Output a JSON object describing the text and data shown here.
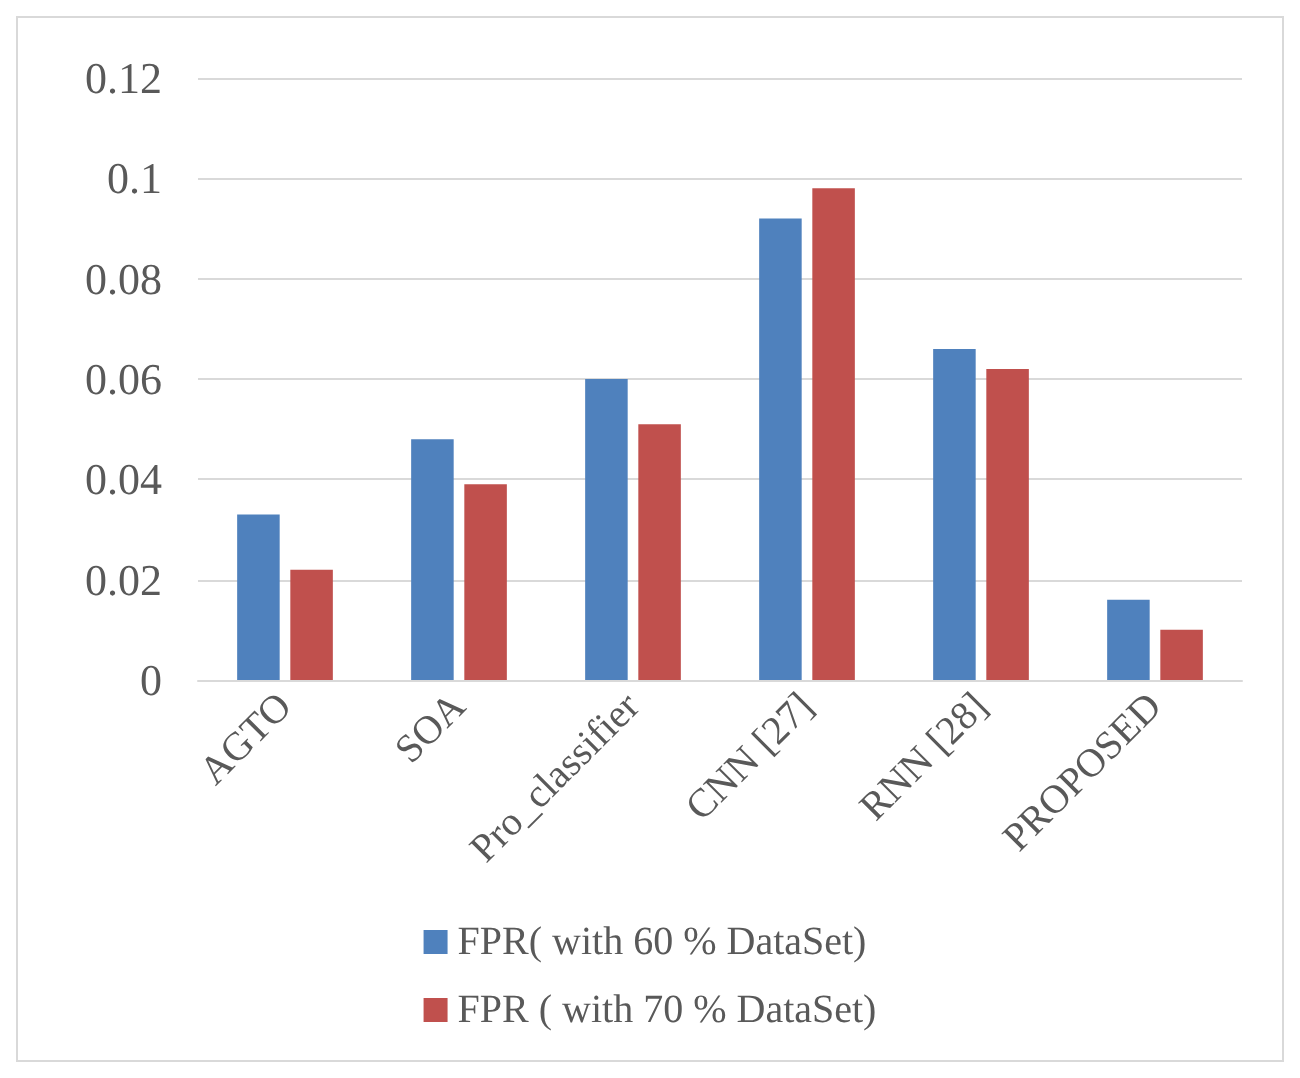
{
  "chart_data": {
    "type": "bar",
    "categories": [
      "AGTO",
      "SOA",
      "Pro_classifier",
      "CNN [27]",
      "RNN [28]",
      "PROPOSED"
    ],
    "series": [
      {
        "name": "FPR( with 60 % DataSet)",
        "color": "#4f81bd",
        "values": [
          0.033,
          0.048,
          0.06,
          0.092,
          0.066,
          0.016
        ]
      },
      {
        "name": "FPR ( with 70 % DataSet)",
        "color": "#c0504d",
        "values": [
          0.022,
          0.039,
          0.051,
          0.098,
          0.062,
          0.01
        ]
      }
    ],
    "ylim": [
      0,
      0.12
    ],
    "yticks": [
      0,
      0.02,
      0.04,
      0.06,
      0.08,
      0.1,
      0.12
    ],
    "grid": "y",
    "legend": "bottom"
  }
}
